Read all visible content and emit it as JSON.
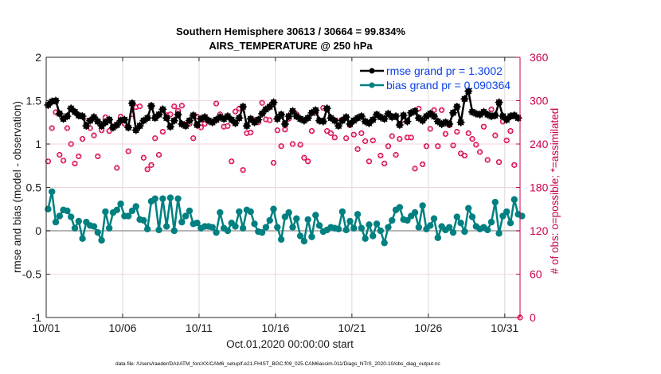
{
  "chart_data": {
    "type": "line",
    "title": [
      "Southern Hemisphere 30613 / 30664 = 99.834%",
      "AIRS_TEMPERATURE @ 250 hPa"
    ],
    "xlabel": "Oct.01,2020 00:00:00 start",
    "ylabel": "rmse and bias (model - observation)",
    "ylabel_right": "# of obs: o=possible; *=assimilated",
    "xlim_days": [
      0,
      31
    ],
    "ylim": [
      -1,
      2
    ],
    "ylim_right": [
      0,
      360
    ],
    "x_ticks": [
      {
        "day": 0,
        "label": "10/01"
      },
      {
        "day": 5,
        "label": "10/06"
      },
      {
        "day": 10,
        "label": "10/11"
      },
      {
        "day": 15,
        "label": "10/16"
      },
      {
        "day": 20,
        "label": "10/21"
      },
      {
        "day": 25,
        "label": "10/26"
      },
      {
        "day": 30,
        "label": "10/31"
      }
    ],
    "y_ticks": [
      {
        "value": 2,
        "label": "2"
      },
      {
        "value": 1.5,
        "label": "1.5"
      },
      {
        "value": 1,
        "label": "1"
      },
      {
        "value": 0.5,
        "label": "0.5"
      },
      {
        "value": 0,
        "label": "0"
      },
      {
        "value": -0.5,
        "label": "-0.5"
      },
      {
        "value": -1,
        "label": "-1"
      }
    ],
    "y_ticks_right": [
      {
        "value": 360,
        "label": "360"
      },
      {
        "value": 300,
        "label": "300"
      },
      {
        "value": 240,
        "label": "240"
      },
      {
        "value": 180,
        "label": "180"
      },
      {
        "value": 120,
        "label": "120"
      },
      {
        "value": 60,
        "label": "60"
      },
      {
        "value": 0,
        "label": "0"
      }
    ],
    "time_step_days": 0.25,
    "legend": {
      "placement": "top-right",
      "entries": [
        {
          "label": "rmse grand pr = 1.3002",
          "color": "#000000"
        },
        {
          "label": "bias grand pr = 0.090364",
          "color": "#008080"
        }
      ]
    },
    "series": [
      {
        "name": "rmse",
        "color": "#000000",
        "values": [
          1.45,
          1.49,
          1.5,
          1.35,
          1.29,
          1.32,
          1.41,
          1.37,
          1.33,
          1.32,
          1.21,
          1.27,
          1.31,
          1.26,
          1.21,
          1.25,
          1.28,
          1.19,
          1.22,
          1.27,
          1.28,
          1.19,
          1.47,
          1.16,
          1.21,
          1.27,
          1.3,
          1.44,
          1.3,
          1.34,
          1.4,
          1.3,
          1.2,
          1.27,
          1.34,
          1.23,
          1.21,
          1.27,
          1.33,
          1.22,
          1.29,
          1.31,
          1.27,
          1.25,
          1.28,
          1.31,
          1.29,
          1.32,
          1.28,
          1.24,
          1.3,
          1.43,
          1.21,
          1.29,
          1.25,
          1.28,
          1.35,
          1.4,
          1.43,
          1.48,
          1.29,
          1.34,
          1.23,
          1.32,
          1.38,
          1.32,
          1.29,
          1.27,
          1.3,
          1.36,
          1.39,
          1.27,
          1.26,
          1.41,
          1.3,
          1.27,
          1.21,
          1.27,
          1.31,
          1.23,
          1.27,
          1.3,
          1.32,
          1.26,
          1.24,
          1.28,
          1.34,
          1.31,
          1.29,
          1.35,
          1.31,
          1.32,
          1.22,
          1.33,
          1.26,
          1.36,
          1.38,
          1.3,
          1.27,
          1.32,
          1.35,
          1.32,
          1.26,
          1.23,
          1.25,
          1.23,
          1.36,
          1.43,
          1.25,
          1.52,
          1.61,
          1.37,
          1.35,
          1.34,
          1.37,
          1.34,
          1.32,
          1.33,
          1.48,
          1.32,
          1.28,
          1.32,
          1.33,
          1.3
        ],
        "marker": "star"
      },
      {
        "name": "bias",
        "color": "#008080",
        "values": [
          0.25,
          0.45,
          0.1,
          0.17,
          0.24,
          0.23,
          0.16,
          0.03,
          0.11,
          -0.09,
          0.1,
          0.06,
          0.05,
          -0.02,
          -0.11,
          0.22,
          0.03,
          0.21,
          0.24,
          0.31,
          0.17,
          0.17,
          0.23,
          0.28,
          0.13,
          0.12,
          0.02,
          0.34,
          0.37,
          0.01,
          0.37,
          0.05,
          0.38,
          0.0,
          0.37,
          0.1,
          0.17,
          0.23,
          0.08,
          0.09,
          0.03,
          0.05,
          0.05,
          0.04,
          -0.02,
          0.21,
          0.03,
          0.0,
          0.09,
          0.05,
          0.22,
          0.03,
          0.24,
          0.22,
          0.08,
          -0.01,
          -0.02,
          0.04,
          0.12,
          0.25,
          0.04,
          -0.1,
          0.16,
          0.21,
          0.04,
          0.14,
          -0.06,
          -0.12,
          0.13,
          -0.07,
          0.18,
          0.06,
          -0.01,
          0.01,
          0.04,
          0.03,
          0.02,
          0.22,
          0.01,
          0.11,
          0.03,
          0.19,
          0.03,
          -0.09,
          0.07,
          -0.06,
          0.08,
          0.0,
          -0.14,
          0.04,
          0.12,
          0.24,
          0.27,
          0.13,
          0.12,
          0.17,
          0.21,
          0.04,
          0.29,
          0.02,
          0.06,
          0.14,
          -0.08,
          0.05,
          0.01,
          0.04,
          -0.02,
          0.16,
          0.09,
          -0.01,
          0.26,
          0.16,
          0.05,
          0.02,
          0.04,
          0.01,
          0.1,
          0.33,
          -0.03,
          0.17,
          0.22,
          0.09,
          0.36,
          0.19,
          0.17
        ],
        "marker": "circle"
      },
      {
        "name": "obs_count",
        "axis": "right",
        "color": "#d6004f",
        "values": [
          216,
          262,
          284,
          225,
          217,
          262,
          240,
          213,
          223,
          247,
          272,
          262,
          252,
          223,
          259,
          277,
          258,
          264,
          207,
          278,
          268,
          230,
          281,
          291,
          292,
          221,
          205,
          211,
          248,
          225,
          257,
          280,
          281,
          292,
          286,
          293,
          267,
          268,
          248,
          278,
          263,
          268,
          273,
          271,
          296,
          281,
          264,
          265,
          216,
          285,
          289,
          204,
          255,
          256,
          273,
          270,
          297,
          274,
          273,
          214,
          259,
          237,
          260,
          275,
          240,
          281,
          239,
          221,
          216,
          258,
          283,
          272,
          290,
          258,
          255,
          249,
          271,
          274,
          248,
          266,
          253,
          233,
          255,
          244,
          216,
          245,
          281,
          224,
          213,
          237,
          251,
          225,
          247,
          273,
          249,
          249,
          206,
          289,
          212,
          237,
          261,
          287,
          237,
          287,
          254,
          266,
          238,
          257,
          227,
          224,
          255,
          247,
          239,
          229,
          264,
          218,
          288,
          252,
          215,
          271,
          245,
          258,
          211,
          0
        ],
        "marker": "asterisk-circle"
      }
    ]
  },
  "footnote": "data file: /Users/raeder/DAI/ATM_forcXX/CAM6_setup/f.e21.FHIST_BGC.f09_025.CAM6assim.011/Diags_NTrS_2020-10/obs_diag_output.nc"
}
